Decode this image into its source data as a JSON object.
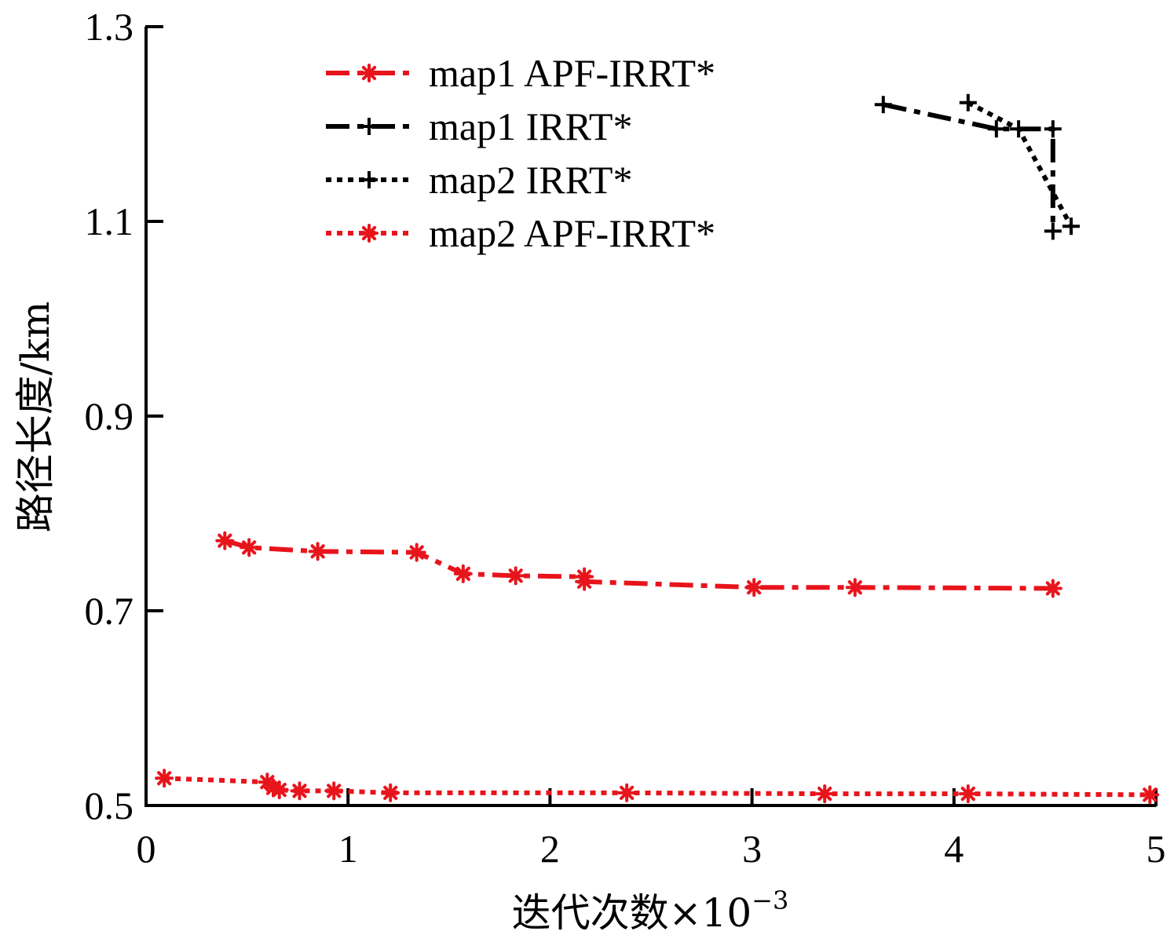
{
  "chart_data": {
    "type": "line",
    "xlabel": "迭代次数×10",
    "xlabel_exponent": "−3",
    "ylabel": "路径长度/km",
    "xlim": [
      0,
      5
    ],
    "ylim": [
      0.5,
      1.3
    ],
    "xticks": [
      "0",
      "1",
      "2",
      "3",
      "4",
      "5"
    ],
    "yticks": [
      "0.5",
      "0.7",
      "0.9",
      "1.1",
      "1.3"
    ],
    "grid": false,
    "legend_position": "top-center",
    "series": [
      {
        "name": "map1 APF-IRRT*",
        "color": "#e8141c",
        "line_style": "dashdot",
        "marker": "asterisk",
        "x": [
          0.39,
          0.51,
          0.85,
          1.34,
          1.57,
          1.83,
          2.17,
          2.17,
          3.01,
          3.51,
          4.49
        ],
        "y": [
          0.772,
          0.765,
          0.761,
          0.76,
          0.738,
          0.736,
          0.735,
          0.73,
          0.724,
          0.724,
          0.723
        ]
      },
      {
        "name": "map1 IRRT*",
        "color": "#000000",
        "line_style": "dashdot",
        "marker": "plus",
        "x": [
          3.65,
          4.21,
          4.49,
          4.49
        ],
        "y": [
          1.22,
          1.195,
          1.195,
          1.09
        ]
      },
      {
        "name": "map2 IRRT*",
        "color": "#000000",
        "line_style": "dotted",
        "marker": "plus",
        "x": [
          4.07,
          4.32,
          4.58
        ],
        "y": [
          1.222,
          1.195,
          1.095
        ]
      },
      {
        "name": "map2 APF-IRRT*",
        "color": "#e8141c",
        "line_style": "dotted",
        "marker": "asterisk",
        "x": [
          0.09,
          0.6,
          0.63,
          0.66,
          0.76,
          0.93,
          1.21,
          2.38,
          3.36,
          4.07,
          4.97
        ],
        "y": [
          0.528,
          0.524,
          0.518,
          0.516,
          0.515,
          0.515,
          0.513,
          0.513,
          0.512,
          0.512,
          0.511
        ]
      }
    ]
  }
}
